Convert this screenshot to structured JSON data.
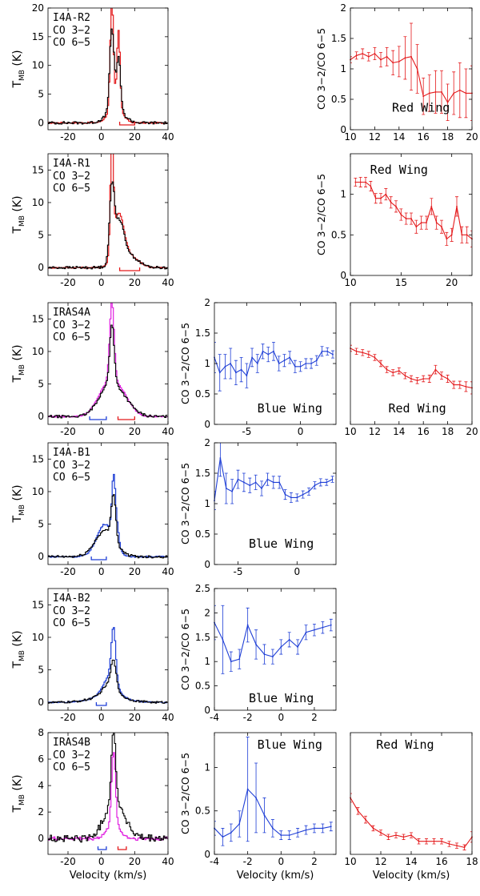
{
  "figure": {
    "common_xlabel": "Velocity (km/s)",
    "spectrum_ylabel": "T",
    "spectrum_ylabel_sub": "MB",
    "spectrum_ylabel_unit": "(K)",
    "ratio_ylabel": "CO 3−2/CO 6−5"
  },
  "chart_data": [
    {
      "id": "spec-I4A-R2",
      "type": "line",
      "row": 0,
      "col": 0,
      "title": "I4A-R2",
      "xlabel": "",
      "ylabel": "T_MB (K)",
      "xlim": [
        -32,
        40
      ],
      "ylim": [
        -1.2,
        20
      ],
      "xticks": [
        -20,
        0,
        20,
        40
      ],
      "yticks": [
        0,
        5,
        10,
        15,
        20
      ],
      "center": 7,
      "noise": 0.3,
      "legend": [
        {
          "label": "CO 3−2",
          "color": "#e41a1c"
        },
        {
          "label": "CO 6−5",
          "color": "#000000"
        }
      ],
      "series": [
        {
          "name": "CO 3−2",
          "color": "#e41a1c",
          "components": [
            [
              18,
              6,
              1.0
            ],
            [
              13.5,
              10,
              0.9
            ],
            [
              3,
              8,
              4
            ]
          ]
        },
        {
          "name": "CO 6−5",
          "color": "#000000",
          "components": [
            [
              14,
              6,
              1.3
            ],
            [
              9,
              10,
              1.2
            ],
            [
              2.5,
              8,
              5
            ]
          ]
        }
      ],
      "wings": [
        {
          "range": [
            11,
            20
          ],
          "color": "#e41a1c"
        }
      ]
    },
    {
      "id": "spec-I4A-R1",
      "type": "line",
      "row": 1,
      "col": 0,
      "title": "I4A-R1",
      "xlabel": "",
      "ylabel": "T_MB (K)",
      "xlim": [
        -32,
        40
      ],
      "ylim": [
        -1.2,
        17.5
      ],
      "xticks": [
        -20,
        0,
        20,
        40
      ],
      "yticks": [
        0,
        5,
        10,
        15
      ],
      "center": 7,
      "noise": 0.25,
      "legend": [
        {
          "label": "CO 3−2",
          "color": "#e41a1c"
        },
        {
          "label": "CO 6−5",
          "color": "#000000"
        }
      ],
      "series": [
        {
          "name": "CO 3−2",
          "color": "#e41a1c",
          "components": [
            [
              17,
              6,
              0.9
            ],
            [
              7,
              10,
              3
            ],
            [
              2,
              15,
              6
            ]
          ]
        },
        {
          "name": "CO 6−5",
          "color": "#000000",
          "components": [
            [
              10,
              6,
              1.4
            ],
            [
              6,
              10,
              3
            ],
            [
              2,
              15,
              6
            ]
          ]
        }
      ],
      "wings": [
        {
          "range": [
            11,
            23
          ],
          "color": "#e41a1c"
        }
      ]
    },
    {
      "id": "spec-IRAS4A",
      "type": "line",
      "row": 2,
      "col": 0,
      "title": "IRAS4A",
      "xlabel": "",
      "ylabel": "T_MB (K)",
      "xlim": [
        -32,
        40
      ],
      "ylim": [
        -1.2,
        17.5
      ],
      "xticks": [
        -20,
        0,
        20,
        40
      ],
      "yticks": [
        0,
        5,
        10,
        15
      ],
      "center": 7,
      "noise": 0.25,
      "legend": [
        {
          "label": "CO 3−2",
          "color": "#e020e0"
        },
        {
          "label": "CO 6−5",
          "color": "#000000"
        }
      ],
      "series": [
        {
          "name": "CO 3−2",
          "color": "#e020e0",
          "components": [
            [
              12,
              6,
              1.3
            ],
            [
              4,
              3,
              6
            ],
            [
              3,
              11,
              6
            ]
          ]
        },
        {
          "name": "CO 6−5",
          "color": "#000000",
          "components": [
            [
              9,
              6,
              1.3
            ],
            [
              3,
              3,
              6
            ],
            [
              3,
              10,
              7
            ]
          ]
        }
      ],
      "wings": [
        {
          "range": [
            -7,
            3
          ],
          "color": "#1f3fd6"
        },
        {
          "range": [
            10,
            20
          ],
          "color": "#e41a1c"
        }
      ]
    },
    {
      "id": "spec-I4A-B1",
      "type": "line",
      "row": 3,
      "col": 0,
      "title": "I4A-B1",
      "xlabel": "",
      "ylabel": "T_MB (K)",
      "xlim": [
        -32,
        40
      ],
      "ylim": [
        -1.2,
        17.5
      ],
      "xticks": [
        -20,
        0,
        20,
        40
      ],
      "yticks": [
        0,
        5,
        10,
        15
      ],
      "center": 7,
      "noise": 0.25,
      "legend": [
        {
          "label": "CO 3−2",
          "color": "#1f3fd6"
        },
        {
          "label": "CO 6−5",
          "color": "#000000"
        }
      ],
      "series": [
        {
          "name": "CO 3−2",
          "color": "#1f3fd6",
          "components": [
            [
              9,
              7,
              1.0
            ],
            [
              5,
              2,
              5
            ],
            [
              3,
              9,
              1.2
            ]
          ]
        },
        {
          "name": "CO 6−5",
          "color": "#000000",
          "components": [
            [
              7,
              7,
              1.3
            ],
            [
              4,
              2,
              6
            ]
          ]
        }
      ],
      "wings": [
        {
          "range": [
            -6,
            3
          ],
          "color": "#1f3fd6"
        }
      ]
    },
    {
      "id": "spec-I4A-B2",
      "type": "line",
      "row": 4,
      "col": 0,
      "title": "I4A-B2",
      "xlabel": "",
      "ylabel": "T_MB (K)",
      "xlim": [
        -32,
        40
      ],
      "ylim": [
        -1.2,
        17.5
      ],
      "xticks": [
        -20,
        0,
        20,
        40
      ],
      "yticks": [
        0,
        5,
        10,
        15
      ],
      "center": 7,
      "noise": 0.2,
      "legend": [
        {
          "label": "CO 3−2",
          "color": "#1f3fd6"
        },
        {
          "label": "CO 6−5",
          "color": "#000000"
        }
      ],
      "series": [
        {
          "name": "CO 3−2",
          "color": "#1f3fd6",
          "components": [
            [
              8,
              7,
              1.3
            ],
            [
              3,
              5,
              4
            ],
            [
              1,
              4,
              10
            ]
          ]
        },
        {
          "name": "CO 6−5",
          "color": "#000000",
          "components": [
            [
              4,
              7,
              1.4
            ],
            [
              2,
              5,
              4
            ],
            [
              1,
              4,
              10
            ]
          ]
        }
      ],
      "wings": [
        {
          "range": [
            -3,
            3
          ],
          "color": "#1f3fd6"
        }
      ]
    },
    {
      "id": "spec-IRAS4B",
      "type": "line",
      "row": 5,
      "col": 0,
      "title": "IRAS4B",
      "xlabel": "Velocity (km/s)",
      "ylabel": "T_MB (K)",
      "xlim": [
        -32,
        40
      ],
      "ylim": [
        -1.2,
        8
      ],
      "xticks": [
        -20,
        0,
        20,
        40
      ],
      "yticks": [
        0,
        2,
        4,
        6,
        8
      ],
      "center": 7,
      "noise": 0.35,
      "legend": [
        {
          "label": "CO 3−2",
          "color": "#e020e0"
        },
        {
          "label": "CO 6−5",
          "color": "#000000"
        }
      ],
      "series": [
        {
          "name": "CO 3−2",
          "color": "#e020e0",
          "components": [
            [
              5.5,
              7,
              1.2
            ],
            [
              1,
              7,
              4
            ]
          ]
        },
        {
          "name": "CO 6−5",
          "color": "#000000",
          "components": [
            [
              5.5,
              7,
              1.3
            ],
            [
              1.8,
              5,
              5
            ],
            [
              1.5,
              11,
              5
            ]
          ]
        }
      ],
      "wings": [
        {
          "range": [
            -2,
            3
          ],
          "color": "#1f3fd6"
        },
        {
          "range": [
            10,
            15
          ],
          "color": "#e41a1c"
        }
      ]
    },
    {
      "id": "ratio-I4A-R2-red",
      "type": "line",
      "row": 0,
      "col": 2,
      "title": "Red Wing",
      "xlabel": "",
      "ylabel": "CO 3−2/CO 6−5",
      "xlim": [
        10,
        20
      ],
      "ylim": [
        0,
        2
      ],
      "xticks": [
        10,
        12,
        14,
        16,
        18,
        20
      ],
      "yticks": [
        0,
        0.5,
        1,
        1.5,
        2
      ],
      "color": "#e41a1c",
      "x": [
        10,
        10.5,
        11,
        11.5,
        12,
        12.5,
        13,
        13.5,
        14,
        14.5,
        15,
        15.5,
        16,
        16.5,
        17,
        17.5,
        18,
        18.5,
        19,
        19.5,
        20
      ],
      "y": [
        1.15,
        1.22,
        1.25,
        1.2,
        1.25,
        1.15,
        1.2,
        1.1,
        1.12,
        1.18,
        1.2,
        1.0,
        0.55,
        0.6,
        0.62,
        0.62,
        0.45,
        0.6,
        0.65,
        0.6,
        0.6
      ],
      "err": [
        0.05,
        0.06,
        0.08,
        0.07,
        0.1,
        0.12,
        0.15,
        0.2,
        0.25,
        0.35,
        0.55,
        0.4,
        0.3,
        0.3,
        0.35,
        0.35,
        0.3,
        0.35,
        0.45,
        0.4,
        0.45
      ]
    },
    {
      "id": "ratio-I4A-R1-red",
      "type": "line",
      "row": 1,
      "col": 2,
      "title": "Red Wing",
      "xlabel": "",
      "ylabel": "CO 3−2/CO 6−5",
      "xlim": [
        10,
        22
      ],
      "ylim": [
        0,
        1.5
      ],
      "xticks": [
        10,
        15,
        20
      ],
      "yticks": [
        0,
        0.5,
        1
      ],
      "color": "#e41a1c",
      "x": [
        10.5,
        11,
        11.5,
        12,
        12.5,
        13,
        13.5,
        14,
        14.5,
        15,
        15.5,
        16,
        16.5,
        17,
        17.5,
        18,
        18.5,
        19,
        19.5,
        20,
        20.5,
        21,
        21.5,
        22
      ],
      "y": [
        1.15,
        1.15,
        1.15,
        1.1,
        0.95,
        0.95,
        1.0,
        0.9,
        0.85,
        0.75,
        0.7,
        0.7,
        0.6,
        0.65,
        0.65,
        0.85,
        0.65,
        0.6,
        0.45,
        0.5,
        0.85,
        0.5,
        0.5,
        0.45
      ],
      "err": [
        0.05,
        0.06,
        0.06,
        0.06,
        0.06,
        0.06,
        0.07,
        0.07,
        0.07,
        0.07,
        0.07,
        0.07,
        0.08,
        0.08,
        0.08,
        0.1,
        0.08,
        0.08,
        0.08,
        0.08,
        0.12,
        0.1,
        0.1,
        0.1
      ]
    },
    {
      "id": "ratio-IRAS4A-blue",
      "type": "line",
      "row": 2,
      "col": 1,
      "title": "Blue Wing",
      "xlabel": "",
      "ylabel": "CO 3−2/CO 6−5",
      "xlim": [
        -8,
        3.3
      ],
      "ylim": [
        0,
        2
      ],
      "xticks": [
        -5,
        0
      ],
      "yticks": [
        0,
        0.5,
        1,
        1.5,
        2
      ],
      "color": "#1f3fd6",
      "x": [
        -8,
        -7.5,
        -7,
        -6.5,
        -6,
        -5.5,
        -5,
        -4.5,
        -4,
        -3.5,
        -3,
        -2.5,
        -2,
        -1.5,
        -1,
        -0.5,
        0,
        0.5,
        1,
        1.5,
        2,
        2.5,
        3
      ],
      "y": [
        1.1,
        0.85,
        0.95,
        1.0,
        0.85,
        0.9,
        0.8,
        1.1,
        1.0,
        1.2,
        1.15,
        1.2,
        1.0,
        1.05,
        1.1,
        0.95,
        0.95,
        1.0,
        1.0,
        1.05,
        1.2,
        1.2,
        1.15
      ],
      "err": [
        0.25,
        0.3,
        0.2,
        0.25,
        0.2,
        0.2,
        0.2,
        0.15,
        0.15,
        0.12,
        0.12,
        0.15,
        0.12,
        0.1,
        0.1,
        0.1,
        0.08,
        0.08,
        0.08,
        0.08,
        0.08,
        0.06,
        0.06
      ]
    },
    {
      "id": "ratio-IRAS4A-red",
      "type": "line",
      "row": 2,
      "col": 2,
      "title": "Red Wing",
      "xlabel": "",
      "ylabel": "",
      "xlim": [
        10,
        20
      ],
      "ylim": [
        0,
        2
      ],
      "xticks": [
        10,
        12,
        14,
        16,
        18,
        20
      ],
      "yticks": [],
      "color": "#e41a1c",
      "x": [
        10,
        10.5,
        11,
        11.5,
        12,
        12.5,
        13,
        13.5,
        14,
        14.5,
        15,
        15.5,
        16,
        16.5,
        17,
        17.5,
        18,
        18.5,
        19,
        19.5,
        20
      ],
      "y": [
        1.25,
        1.2,
        1.18,
        1.15,
        1.1,
        1.0,
        0.9,
        0.85,
        0.88,
        0.8,
        0.75,
        0.72,
        0.75,
        0.75,
        0.9,
        0.8,
        0.75,
        0.65,
        0.65,
        0.62,
        0.6
      ],
      "err": [
        0.05,
        0.05,
        0.05,
        0.05,
        0.05,
        0.05,
        0.05,
        0.05,
        0.05,
        0.05,
        0.05,
        0.05,
        0.05,
        0.06,
        0.07,
        0.06,
        0.06,
        0.06,
        0.06,
        0.08,
        0.1
      ]
    },
    {
      "id": "ratio-I4A-B1-blue",
      "type": "line",
      "row": 3,
      "col": 1,
      "title": "Blue Wing",
      "xlabel": "",
      "ylabel": "CO 3−2/CO 6−5",
      "xlim": [
        -7,
        3.3
      ],
      "ylim": [
        0,
        2
      ],
      "xticks": [
        -5,
        0
      ],
      "yticks": [
        0,
        0.5,
        1,
        1.5,
        2
      ],
      "color": "#1f3fd6",
      "x": [
        -7,
        -6.5,
        -6,
        -5.5,
        -5,
        -4.5,
        -4,
        -3.5,
        -3,
        -2.5,
        -2,
        -1.5,
        -1,
        -0.5,
        0,
        0.5,
        1,
        1.5,
        2,
        2.5,
        3
      ],
      "y": [
        1.05,
        1.75,
        1.25,
        1.2,
        1.4,
        1.35,
        1.3,
        1.35,
        1.25,
        1.4,
        1.35,
        1.35,
        1.15,
        1.1,
        1.1,
        1.15,
        1.2,
        1.3,
        1.35,
        1.35,
        1.4
      ],
      "err": [
        0.15,
        0.3,
        0.25,
        0.2,
        0.15,
        0.15,
        0.12,
        0.12,
        0.12,
        0.1,
        0.1,
        0.1,
        0.08,
        0.08,
        0.06,
        0.06,
        0.06,
        0.06,
        0.06,
        0.05,
        0.05
      ]
    },
    {
      "id": "ratio-I4A-B2-blue",
      "type": "line",
      "row": 4,
      "col": 1,
      "title": "Blue Wing",
      "xlabel": "",
      "ylabel": "CO 3−2/CO 6−5",
      "xlim": [
        -4,
        3.3
      ],
      "ylim": [
        0,
        2.5
      ],
      "xticks": [
        -4,
        -2,
        0,
        2
      ],
      "yticks": [
        0,
        0.5,
        1,
        1.5,
        2,
        2.5
      ],
      "color": "#1f3fd6",
      "x": [
        -4,
        -3.5,
        -3,
        -2.5,
        -2,
        -1.5,
        -1,
        -0.5,
        0,
        0.5,
        1,
        1.5,
        2,
        2.5,
        3
      ],
      "y": [
        1.8,
        1.45,
        1.0,
        1.05,
        1.75,
        1.35,
        1.15,
        1.1,
        1.3,
        1.45,
        1.3,
        1.6,
        1.65,
        1.7,
        1.75
      ],
      "err": [
        0.35,
        0.7,
        0.2,
        0.2,
        0.35,
        0.3,
        0.2,
        0.15,
        0.15,
        0.15,
        0.15,
        0.15,
        0.12,
        0.12,
        0.12
      ]
    },
    {
      "id": "ratio-IRAS4B-blue",
      "type": "line",
      "row": 5,
      "col": 1,
      "title": "Blue Wing",
      "xlabel": "Velocity (km/s)",
      "ylabel": "CO 3−2/CO 6−5",
      "xlim": [
        -4,
        3.3
      ],
      "ylim": [
        0,
        1.4
      ],
      "xticks": [
        -4,
        -2,
        0,
        2
      ],
      "yticks": [
        0,
        0.5,
        1
      ],
      "color": "#1f3fd6",
      "x": [
        -4,
        -3.5,
        -3,
        -2.5,
        -2,
        -1.5,
        -1,
        -0.5,
        0,
        0.5,
        1,
        1.5,
        2,
        2.5,
        3
      ],
      "y": [
        0.3,
        0.2,
        0.25,
        0.35,
        0.75,
        0.65,
        0.45,
        0.3,
        0.22,
        0.22,
        0.25,
        0.28,
        0.3,
        0.3,
        0.32
      ],
      "err": [
        0.08,
        0.1,
        0.1,
        0.15,
        0.6,
        0.4,
        0.2,
        0.1,
        0.05,
        0.05,
        0.05,
        0.05,
        0.05,
        0.05,
        0.05
      ]
    },
    {
      "id": "ratio-IRAS4B-red",
      "type": "line",
      "row": 5,
      "col": 2,
      "title": "Red Wing",
      "xlabel": "Velocity (km/s)",
      "ylabel": "",
      "xlim": [
        10,
        18
      ],
      "ylim": [
        0,
        1.4
      ],
      "xticks": [
        10,
        12,
        14,
        16,
        18
      ],
      "yticks": [],
      "color": "#e41a1c",
      "x": [
        10,
        10.5,
        11,
        11.5,
        12,
        12.5,
        13,
        13.5,
        14,
        14.5,
        15,
        15.5,
        16,
        16.5,
        17,
        17.5,
        18
      ],
      "y": [
        0.65,
        0.5,
        0.4,
        0.3,
        0.25,
        0.2,
        0.22,
        0.2,
        0.22,
        0.15,
        0.15,
        0.15,
        0.15,
        0.12,
        0.1,
        0.08,
        0.2
      ],
      "err": [
        0.05,
        0.04,
        0.04,
        0.03,
        0.03,
        0.03,
        0.03,
        0.03,
        0.03,
        0.03,
        0.03,
        0.03,
        0.03,
        0.03,
        0.03,
        0.03,
        0.06
      ]
    }
  ]
}
